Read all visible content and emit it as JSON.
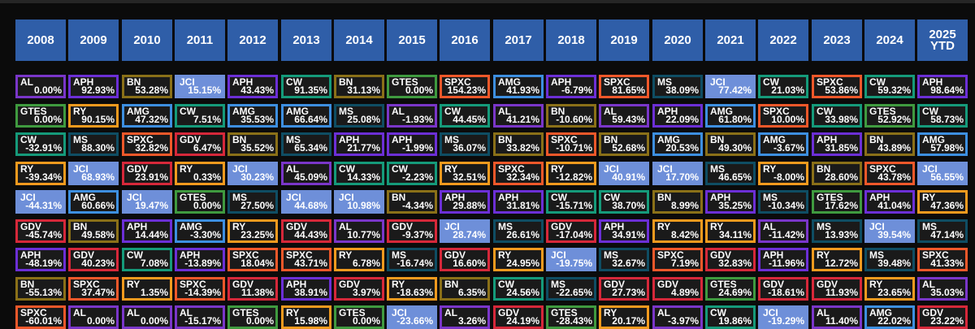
{
  "chart_data": {
    "type": "table",
    "title": "",
    "columns": [
      "2008",
      "2009",
      "2010",
      "2011",
      "2012",
      "2013",
      "2014",
      "2015",
      "2016",
      "2017",
      "2018",
      "2019",
      "2020",
      "2021",
      "2022",
      "2023",
      "2024",
      "2025\nYTD"
    ],
    "highlight_ticker": "JCI",
    "ticker_colors": {
      "AL": "#7a36c9",
      "APH": "#6c2fd6",
      "BN": "#8a7018",
      "GTES": "#3f9a3f",
      "CW": "#159a7a",
      "RY": "#f29a1e",
      "MS": "#0f4d63",
      "GDV": "#d6283a",
      "AMG": "#3d8fe0",
      "SPXC": "#f0582a",
      "JCI": "#6e8fd9"
    },
    "years": [
      {
        "year": "2008",
        "rows": [
          {
            "ticker": "AL",
            "ret": "0.00%"
          },
          {
            "ticker": "GTES",
            "ret": "0.00%"
          },
          {
            "ticker": "CW",
            "ret": "-32.91%"
          },
          {
            "ticker": "RY",
            "ret": "-39.34%"
          },
          {
            "ticker": "JCI",
            "ret": "-44.31%"
          },
          {
            "ticker": "GDV",
            "ret": "-45.74%"
          },
          {
            "ticker": "APH",
            "ret": "-48.19%"
          },
          {
            "ticker": "BN",
            "ret": "-55.13%"
          },
          {
            "ticker": "SPXC",
            "ret": "-60.01%"
          }
        ]
      },
      {
        "year": "2009",
        "rows": [
          {
            "ticker": "APH",
            "ret": "92.93%"
          },
          {
            "ticker": "RY",
            "ret": "90.15%"
          },
          {
            "ticker": "MS",
            "ret": "88.30%"
          },
          {
            "ticker": "JCI",
            "ret": "68.93%"
          },
          {
            "ticker": "AMG",
            "ret": "60.66%"
          },
          {
            "ticker": "BN",
            "ret": "49.58%"
          },
          {
            "ticker": "GDV",
            "ret": "40.23%"
          },
          {
            "ticker": "SPXC",
            "ret": "37.47%"
          },
          {
            "ticker": "AL",
            "ret": "0.00%"
          }
        ]
      },
      {
        "year": "2010",
        "rows": [
          {
            "ticker": "BN",
            "ret": "53.28%"
          },
          {
            "ticker": "AMG",
            "ret": "47.32%"
          },
          {
            "ticker": "SPXC",
            "ret": "32.82%"
          },
          {
            "ticker": "GDV",
            "ret": "23.91%"
          },
          {
            "ticker": "JCI",
            "ret": "19.47%"
          },
          {
            "ticker": "APH",
            "ret": "14.44%"
          },
          {
            "ticker": "CW",
            "ret": "7.08%"
          },
          {
            "ticker": "RY",
            "ret": "1.35%"
          },
          {
            "ticker": "AL",
            "ret": "0.00%"
          }
        ]
      },
      {
        "year": "2011",
        "rows": [
          {
            "ticker": "JCI",
            "ret": "15.15%"
          },
          {
            "ticker": "CW",
            "ret": "7.51%"
          },
          {
            "ticker": "GDV",
            "ret": "6.47%"
          },
          {
            "ticker": "RY",
            "ret": "0.33%"
          },
          {
            "ticker": "GTES",
            "ret": "0.00%"
          },
          {
            "ticker": "AMG",
            "ret": "-3.30%"
          },
          {
            "ticker": "APH",
            "ret": "-13.89%"
          },
          {
            "ticker": "SPXC",
            "ret": "-14.39%"
          },
          {
            "ticker": "AL",
            "ret": "-15.17%"
          }
        ]
      },
      {
        "year": "2012",
        "rows": [
          {
            "ticker": "APH",
            "ret": "43.43%"
          },
          {
            "ticker": "AMG",
            "ret": "35.53%"
          },
          {
            "ticker": "BN",
            "ret": "35.52%"
          },
          {
            "ticker": "JCI",
            "ret": "30.23%"
          },
          {
            "ticker": "MS",
            "ret": "27.50%"
          },
          {
            "ticker": "RY",
            "ret": "23.25%"
          },
          {
            "ticker": "SPXC",
            "ret": "18.04%"
          },
          {
            "ticker": "GDV",
            "ret": "11.38%"
          },
          {
            "ticker": "GTES",
            "ret": "0.00%"
          }
        ]
      },
      {
        "year": "2013",
        "rows": [
          {
            "ticker": "CW",
            "ret": "91.35%"
          },
          {
            "ticker": "AMG",
            "ret": "66.64%"
          },
          {
            "ticker": "MS",
            "ret": "65.34%"
          },
          {
            "ticker": "AL",
            "ret": "45.09%"
          },
          {
            "ticker": "JCI",
            "ret": "44.68%"
          },
          {
            "ticker": "GDV",
            "ret": "44.43%"
          },
          {
            "ticker": "SPXC",
            "ret": "43.71%"
          },
          {
            "ticker": "APH",
            "ret": "38.91%"
          },
          {
            "ticker": "RY",
            "ret": "15.98%"
          }
        ]
      },
      {
        "year": "2014",
        "rows": [
          {
            "ticker": "BN",
            "ret": "31.13%"
          },
          {
            "ticker": "MS",
            "ret": "25.08%"
          },
          {
            "ticker": "APH",
            "ret": "21.77%"
          },
          {
            "ticker": "CW",
            "ret": "14.33%"
          },
          {
            "ticker": "JCI",
            "ret": "10.98%"
          },
          {
            "ticker": "AL",
            "ret": "10.77%"
          },
          {
            "ticker": "RY",
            "ret": "6.78%"
          },
          {
            "ticker": "GDV",
            "ret": "3.97%"
          },
          {
            "ticker": "GTES",
            "ret": "0.00%"
          }
        ]
      },
      {
        "year": "2015",
        "rows": [
          {
            "ticker": "GTES",
            "ret": "0.00%"
          },
          {
            "ticker": "AL",
            "ret": "-1.93%"
          },
          {
            "ticker": "APH",
            "ret": "-1.99%"
          },
          {
            "ticker": "CW",
            "ret": "-2.23%"
          },
          {
            "ticker": "BN",
            "ret": "-4.34%"
          },
          {
            "ticker": "GDV",
            "ret": "-9.37%"
          },
          {
            "ticker": "MS",
            "ret": "-16.74%"
          },
          {
            "ticker": "RY",
            "ret": "-18.63%"
          },
          {
            "ticker": "JCI",
            "ret": "-23.66%"
          }
        ]
      },
      {
        "year": "2016",
        "rows": [
          {
            "ticker": "SPXC",
            "ret": "154.23%"
          },
          {
            "ticker": "CW",
            "ret": "44.45%"
          },
          {
            "ticker": "MS",
            "ret": "36.07%"
          },
          {
            "ticker": "RY",
            "ret": "32.51%"
          },
          {
            "ticker": "APH",
            "ret": "29.88%"
          },
          {
            "ticker": "JCI",
            "ret": "28.74%"
          },
          {
            "ticker": "GDV",
            "ret": "16.60%"
          },
          {
            "ticker": "BN",
            "ret": "6.35%"
          },
          {
            "ticker": "AL",
            "ret": "3.26%"
          }
        ]
      },
      {
        "year": "2017",
        "rows": [
          {
            "ticker": "AMG",
            "ret": "41.93%"
          },
          {
            "ticker": "AL",
            "ret": "41.21%"
          },
          {
            "ticker": "BN",
            "ret": "33.82%"
          },
          {
            "ticker": "SPXC",
            "ret": "32.34%"
          },
          {
            "ticker": "APH",
            "ret": "31.81%"
          },
          {
            "ticker": "MS",
            "ret": "26.61%"
          },
          {
            "ticker": "RY",
            "ret": "24.95%"
          },
          {
            "ticker": "CW",
            "ret": "24.56%"
          },
          {
            "ticker": "GDV",
            "ret": "24.19%"
          }
        ]
      },
      {
        "year": "2018",
        "rows": [
          {
            "ticker": "APH",
            "ret": "-6.79%"
          },
          {
            "ticker": "BN",
            "ret": "-10.60%"
          },
          {
            "ticker": "SPXC",
            "ret": "-10.71%"
          },
          {
            "ticker": "RY",
            "ret": "-12.82%"
          },
          {
            "ticker": "CW",
            "ret": "-15.71%"
          },
          {
            "ticker": "GDV",
            "ret": "-17.04%"
          },
          {
            "ticker": "JCI",
            "ret": "-19.75%"
          },
          {
            "ticker": "MS",
            "ret": "-22.65%"
          },
          {
            "ticker": "GTES",
            "ret": "-28.43%"
          }
        ]
      },
      {
        "year": "2019",
        "rows": [
          {
            "ticker": "SPXC",
            "ret": "81.65%"
          },
          {
            "ticker": "AL",
            "ret": "59.43%"
          },
          {
            "ticker": "BN",
            "ret": "52.68%"
          },
          {
            "ticker": "JCI",
            "ret": "40.91%"
          },
          {
            "ticker": "CW",
            "ret": "38.70%"
          },
          {
            "ticker": "APH",
            "ret": "34.91%"
          },
          {
            "ticker": "MS",
            "ret": "32.67%"
          },
          {
            "ticker": "GDV",
            "ret": "27.73%"
          },
          {
            "ticker": "RY",
            "ret": "20.17%"
          }
        ]
      },
      {
        "year": "2020",
        "rows": [
          {
            "ticker": "MS",
            "ret": "38.09%"
          },
          {
            "ticker": "APH",
            "ret": "22.09%"
          },
          {
            "ticker": "AMG",
            "ret": "20.53%"
          },
          {
            "ticker": "JCI",
            "ret": "17.70%"
          },
          {
            "ticker": "BN",
            "ret": "8.99%"
          },
          {
            "ticker": "RY",
            "ret": "8.42%"
          },
          {
            "ticker": "SPXC",
            "ret": "7.19%"
          },
          {
            "ticker": "GDV",
            "ret": "4.89%"
          },
          {
            "ticker": "AL",
            "ret": "-3.97%"
          }
        ]
      },
      {
        "year": "2021",
        "rows": [
          {
            "ticker": "JCI",
            "ret": "77.42%"
          },
          {
            "ticker": "AMG",
            "ret": "61.80%"
          },
          {
            "ticker": "BN",
            "ret": "49.30%"
          },
          {
            "ticker": "MS",
            "ret": "46.65%"
          },
          {
            "ticker": "APH",
            "ret": "35.25%"
          },
          {
            "ticker": "RY",
            "ret": "34.11%"
          },
          {
            "ticker": "GDV",
            "ret": "32.83%"
          },
          {
            "ticker": "GTES",
            "ret": "24.69%"
          },
          {
            "ticker": "CW",
            "ret": "19.86%"
          }
        ]
      },
      {
        "year": "2022",
        "rows": [
          {
            "ticker": "CW",
            "ret": "21.03%"
          },
          {
            "ticker": "SPXC",
            "ret": "10.00%"
          },
          {
            "ticker": "AMG",
            "ret": "-3.67%"
          },
          {
            "ticker": "RY",
            "ret": "-8.00%"
          },
          {
            "ticker": "MS",
            "ret": "-10.34%"
          },
          {
            "ticker": "AL",
            "ret": "-11.42%"
          },
          {
            "ticker": "APH",
            "ret": "-11.96%"
          },
          {
            "ticker": "GDV",
            "ret": "-18.61%"
          },
          {
            "ticker": "JCI",
            "ret": "-19.29%"
          }
        ]
      },
      {
        "year": "2023",
        "rows": [
          {
            "ticker": "SPXC",
            "ret": "53.86%"
          },
          {
            "ticker": "CW",
            "ret": "33.98%"
          },
          {
            "ticker": "APH",
            "ret": "31.85%"
          },
          {
            "ticker": "BN",
            "ret": "28.60%"
          },
          {
            "ticker": "GTES",
            "ret": "17.62%"
          },
          {
            "ticker": "MS",
            "ret": "13.93%"
          },
          {
            "ticker": "RY",
            "ret": "12.72%"
          },
          {
            "ticker": "GDV",
            "ret": "11.93%"
          },
          {
            "ticker": "AL",
            "ret": "11.40%"
          }
        ]
      },
      {
        "year": "2024",
        "rows": [
          {
            "ticker": "CW",
            "ret": "59.32%"
          },
          {
            "ticker": "GTES",
            "ret": "52.92%"
          },
          {
            "ticker": "BN",
            "ret": "43.89%"
          },
          {
            "ticker": "SPXC",
            "ret": "43.78%"
          },
          {
            "ticker": "APH",
            "ret": "41.04%"
          },
          {
            "ticker": "JCI",
            "ret": "39.54%"
          },
          {
            "ticker": "MS",
            "ret": "39.48%"
          },
          {
            "ticker": "RY",
            "ret": "23.65%"
          },
          {
            "ticker": "AMG",
            "ret": "22.02%"
          }
        ]
      },
      {
        "year": "2025\nYTD",
        "rows": [
          {
            "ticker": "APH",
            "ret": "98.64%"
          },
          {
            "ticker": "CW",
            "ret": "58.73%"
          },
          {
            "ticker": "AMG",
            "ret": "57.98%"
          },
          {
            "ticker": "JCI",
            "ret": "56.55%"
          },
          {
            "ticker": "RY",
            "ret": "47.36%"
          },
          {
            "ticker": "MS",
            "ret": "47.14%"
          },
          {
            "ticker": "SPXC",
            "ret": "41.33%"
          },
          {
            "ticker": "AL",
            "ret": "35.03%"
          },
          {
            "ticker": "GDV",
            "ret": "23.22%"
          }
        ]
      }
    ]
  }
}
